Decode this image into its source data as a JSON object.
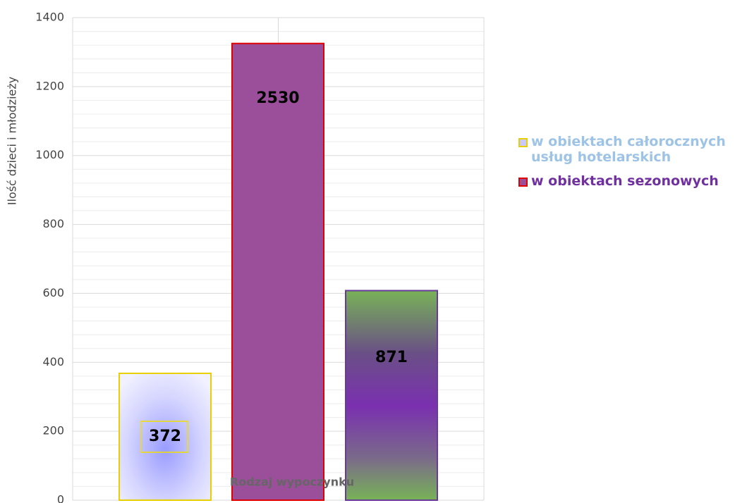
{
  "chart_data": {
    "type": "bar",
    "y_label": "Ilość dzieci i młodzieży",
    "x_label": "Rodzaj wypoczynku",
    "series": [
      {
        "name": "w obiektach całorocznych usług hotelarskich",
        "color": "#c9c9ff",
        "values": [
          368
        ]
      },
      {
        "name": "w obiektach sezonowych",
        "color": "#9b4f9b",
        "values": [
          1325
        ]
      },
      {
        "color": "#77a85a",
        "values": [
          608
        ]
      }
    ],
    "annotations": [
      "372",
      "2530",
      "871"
    ],
    "ylim": [
      0,
      1400
    ],
    "yticks": [
      0,
      200,
      400,
      600,
      800,
      1000,
      1200,
      1400
    ],
    "grid": true,
    "legend": "right"
  }
}
